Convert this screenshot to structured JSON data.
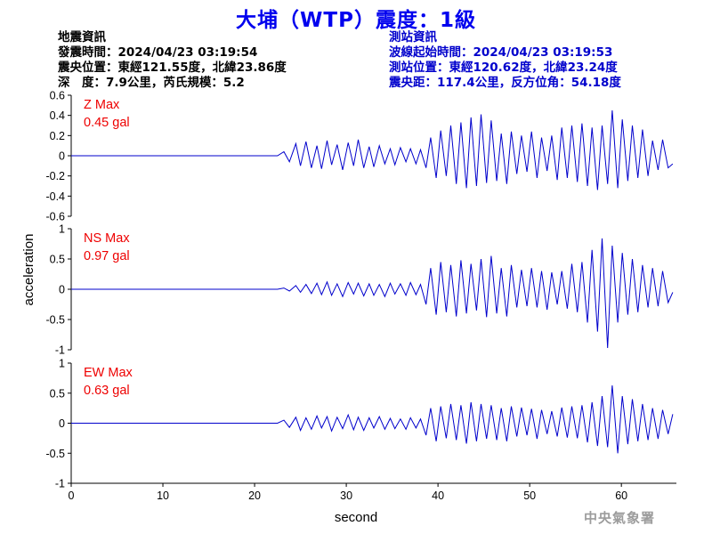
{
  "title": "大埔（WTP）震度：1級",
  "quake": {
    "heading": "地震資訊",
    "time": "發震時間：2024/04/23 03:19:54",
    "position": "震央位置：東經121.55度，北緯23.86度",
    "depth": "深　度：7.9公里，芮氏規模：5.2"
  },
  "station": {
    "heading": "測站資訊",
    "onset": "波線起始時間：2024/04/23 03:19:53",
    "position": "測站位置：東經120.62度，北緯23.24度",
    "distance": "震央距：117.4公里，反方位角：54.18度"
  },
  "agency": "中央氣象署",
  "colors": {
    "title": "#0000ee",
    "trace": "#0000cc",
    "max_label": "#ee0000"
  },
  "chart_data": {
    "type": "line",
    "xlabel": "second",
    "ylabel": "acceleration",
    "xlim": [
      0,
      66
    ],
    "xticks": [
      0,
      10,
      20,
      30,
      40,
      50,
      60
    ],
    "panels": [
      {
        "name": "Z",
        "max_label": "Z Max",
        "max_value": "0.45 gal",
        "ylim": [
          -0.6,
          0.6
        ],
        "yticks": [
          -0.6,
          -0.4,
          -0.2,
          0,
          0.2,
          0.4,
          0.6
        ],
        "ytick_labels": [
          "-0.6",
          "-0.4",
          "-0.2",
          "0",
          "0.2",
          "0.4",
          "0.6"
        ],
        "x": [
          0,
          22.5,
          23.2,
          23.8,
          24.5,
          25.0,
          25.6,
          26.2,
          26.8,
          27.3,
          27.9,
          28.4,
          29.0,
          29.6,
          30.2,
          30.8,
          31.3,
          31.9,
          32.5,
          33.0,
          33.6,
          34.2,
          34.8,
          35.3,
          35.9,
          36.5,
          37.0,
          37.6,
          38.1,
          38.7,
          39.2,
          39.8,
          40.3,
          40.9,
          41.4,
          42.0,
          42.5,
          43.1,
          43.6,
          44.2,
          44.7,
          45.3,
          45.8,
          46.4,
          46.9,
          47.5,
          48.0,
          48.6,
          49.1,
          49.7,
          50.2,
          50.8,
          51.3,
          51.9,
          52.4,
          53.0,
          53.5,
          54.1,
          54.6,
          55.2,
          55.7,
          56.3,
          56.8,
          57.4,
          57.9,
          58.5,
          59.0,
          59.6,
          60.1,
          60.7,
          61.2,
          61.8,
          62.3,
          62.9,
          63.4,
          64.0,
          64.5,
          65.1,
          65.6
        ],
        "y": [
          0,
          0,
          0.04,
          -0.06,
          0.12,
          -0.1,
          0.14,
          -0.12,
          0.1,
          -0.13,
          0.15,
          -0.09,
          0.11,
          -0.14,
          0.13,
          -0.1,
          0.16,
          -0.12,
          0.09,
          -0.11,
          0.1,
          -0.08,
          0.07,
          -0.09,
          0.08,
          -0.06,
          0.07,
          -0.08,
          0.06,
          -0.12,
          0.18,
          -0.22,
          0.25,
          -0.2,
          0.3,
          -0.28,
          0.33,
          -0.32,
          0.38,
          -0.3,
          0.41,
          -0.27,
          0.35,
          -0.25,
          0.22,
          -0.28,
          0.24,
          -0.18,
          0.2,
          -0.16,
          0.24,
          -0.22,
          0.18,
          -0.15,
          0.2,
          -0.24,
          0.28,
          -0.22,
          0.3,
          -0.26,
          0.32,
          -0.3,
          0.28,
          -0.34,
          0.3,
          -0.28,
          0.45,
          -0.32,
          0.36,
          -0.25,
          0.3,
          -0.22,
          0.26,
          -0.2,
          0.15,
          -0.14,
          0.16,
          -0.12,
          -0.08
        ]
      },
      {
        "name": "NS",
        "max_label": "NS Max",
        "max_value": "0.97 gal",
        "ylim": [
          -1,
          1
        ],
        "yticks": [
          -1,
          -0.5,
          0,
          0.5,
          1
        ],
        "ytick_labels": [
          "-1",
          "-0.5",
          "0",
          "0.5",
          "1"
        ],
        "x": [
          0,
          22.5,
          23.2,
          23.8,
          24.5,
          25.0,
          25.6,
          26.2,
          26.8,
          27.3,
          27.9,
          28.4,
          29.0,
          29.6,
          30.2,
          30.8,
          31.3,
          31.9,
          32.5,
          33.0,
          33.6,
          34.2,
          34.8,
          35.3,
          35.9,
          36.5,
          37.0,
          37.6,
          38.1,
          38.7,
          39.2,
          39.8,
          40.3,
          40.9,
          41.4,
          42.0,
          42.5,
          43.1,
          43.6,
          44.2,
          44.7,
          45.3,
          45.8,
          46.4,
          46.9,
          47.5,
          48.0,
          48.6,
          49.1,
          49.7,
          50.2,
          50.8,
          51.3,
          51.9,
          52.4,
          53.0,
          53.5,
          54.1,
          54.6,
          55.2,
          55.7,
          56.3,
          56.8,
          57.4,
          57.9,
          58.5,
          59.0,
          59.6,
          60.1,
          60.7,
          61.2,
          61.8,
          62.3,
          62.9,
          63.4,
          64.0,
          64.5,
          65.1,
          65.6
        ],
        "y": [
          0,
          0,
          0.02,
          -0.03,
          0.06,
          -0.05,
          0.08,
          -0.07,
          0.1,
          -0.09,
          0.12,
          -0.1,
          0.09,
          -0.12,
          0.11,
          -0.08,
          0.1,
          -0.11,
          0.09,
          -0.1,
          0.08,
          -0.12,
          0.1,
          -0.08,
          0.09,
          -0.1,
          0.11,
          -0.09,
          0.08,
          -0.25,
          0.35,
          -0.42,
          0.45,
          -0.38,
          0.4,
          -0.45,
          0.48,
          -0.4,
          0.42,
          -0.35,
          0.5,
          -0.46,
          0.55,
          -0.4,
          0.35,
          -0.45,
          0.4,
          -0.3,
          0.32,
          -0.28,
          0.35,
          -0.3,
          0.3,
          -0.34,
          0.28,
          -0.25,
          0.3,
          -0.32,
          0.42,
          -0.38,
          0.45,
          -0.55,
          0.65,
          -0.7,
          0.84,
          -0.97,
          0.72,
          -0.55,
          0.6,
          -0.42,
          0.5,
          -0.38,
          0.4,
          -0.3,
          0.35,
          -0.28,
          0.3,
          -0.22,
          -0.05
        ]
      },
      {
        "name": "EW",
        "max_label": "EW Max",
        "max_value": "0.63 gal",
        "ylim": [
          -1,
          1
        ],
        "yticks": [
          -1,
          -0.5,
          0,
          0.5,
          1
        ],
        "ytick_labels": [
          "-1",
          "-0.5",
          "0",
          "0.5",
          "1"
        ],
        "x": [
          0,
          22.5,
          23.2,
          23.8,
          24.5,
          25.0,
          25.6,
          26.2,
          26.8,
          27.3,
          27.9,
          28.4,
          29.0,
          29.6,
          30.2,
          30.8,
          31.3,
          31.9,
          32.5,
          33.0,
          33.6,
          34.2,
          34.8,
          35.3,
          35.9,
          36.5,
          37.0,
          37.6,
          38.1,
          38.7,
          39.2,
          39.8,
          40.3,
          40.9,
          41.4,
          42.0,
          42.5,
          43.1,
          43.6,
          44.2,
          44.7,
          45.3,
          45.8,
          46.4,
          46.9,
          47.5,
          48.0,
          48.6,
          49.1,
          49.7,
          50.2,
          50.8,
          51.3,
          51.9,
          52.4,
          53.0,
          53.5,
          54.1,
          54.6,
          55.2,
          55.7,
          56.3,
          56.8,
          57.4,
          57.9,
          58.5,
          59.0,
          59.6,
          60.1,
          60.7,
          61.2,
          61.8,
          62.3,
          62.9,
          63.4,
          64.0,
          64.5,
          65.1,
          65.6
        ],
        "y": [
          0,
          0,
          0.05,
          -0.07,
          0.1,
          -0.12,
          0.09,
          -0.1,
          0.12,
          -0.08,
          0.11,
          -0.13,
          0.1,
          -0.09,
          0.14,
          -0.11,
          0.1,
          -0.12,
          0.09,
          -0.08,
          0.11,
          -0.1,
          0.08,
          -0.09,
          0.07,
          -0.1,
          0.09,
          -0.08,
          0.07,
          -0.2,
          0.25,
          -0.3,
          0.28,
          -0.25,
          0.32,
          -0.28,
          0.3,
          -0.34,
          0.35,
          -0.3,
          0.32,
          -0.26,
          0.3,
          -0.28,
          0.25,
          -0.3,
          0.28,
          -0.22,
          0.26,
          -0.2,
          0.24,
          -0.26,
          0.22,
          -0.18,
          0.2,
          -0.22,
          0.26,
          -0.24,
          0.28,
          -0.25,
          0.3,
          -0.32,
          0.35,
          -0.38,
          0.45,
          -0.4,
          0.63,
          -0.5,
          0.45,
          -0.35,
          0.4,
          -0.3,
          0.32,
          -0.28,
          0.25,
          -0.26,
          0.22,
          -0.18,
          0.15
        ]
      }
    ]
  }
}
